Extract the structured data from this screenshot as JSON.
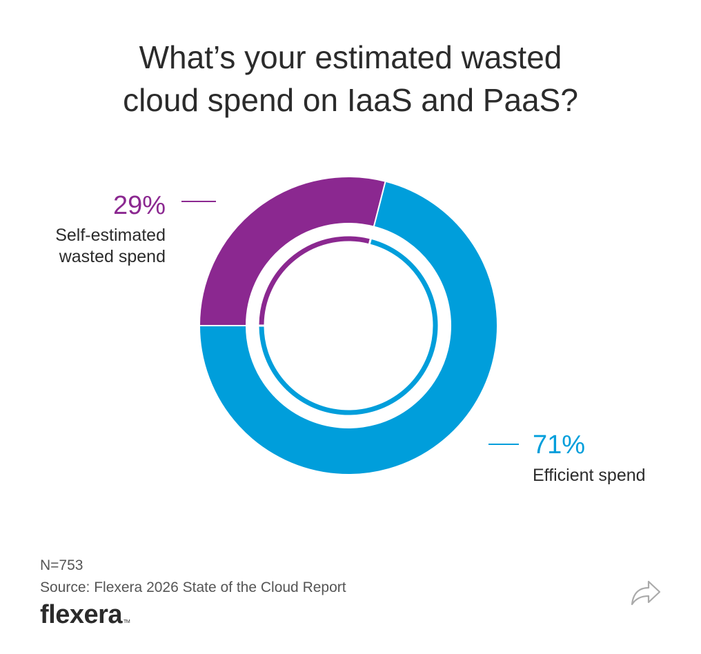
{
  "chart_data": {
    "type": "pie",
    "title_lines": [
      "What’s your estimated wasted",
      "cloud spend on IaaS and PaaS?"
    ],
    "slices": [
      {
        "name_lines": [
          "Self-estimated",
          "wasted spend"
        ],
        "value": 29,
        "label": "29%",
        "color": "#8b2890"
      },
      {
        "name_lines": [
          "Efficient spend"
        ],
        "value": 71,
        "label": "71%",
        "color": "#009edb"
      }
    ]
  },
  "footer": {
    "sample": "N=753",
    "source": "Source: Flexera 2026 State of the Cloud Report"
  },
  "brand": {
    "name": "flexera",
    "mark": "TM"
  },
  "share": {
    "icon": "share-arrow-icon"
  }
}
